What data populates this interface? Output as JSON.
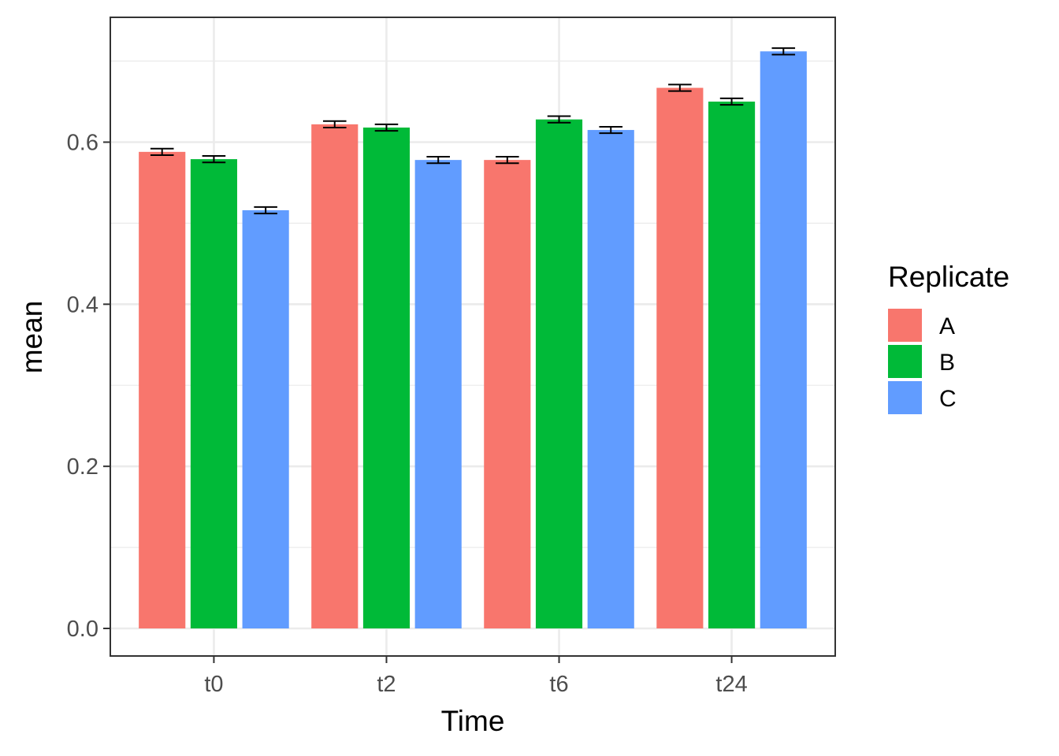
{
  "chart_data": {
    "type": "bar",
    "xlabel": "Time",
    "ylabel": "mean",
    "categories": [
      "t0",
      "t2",
      "t6",
      "t24"
    ],
    "ylim": [
      -0.034,
      0.754
    ],
    "yticks": [
      0.0,
      0.2,
      0.4,
      0.6
    ],
    "ytick_labels": [
      "0.0",
      "0.2",
      "0.4",
      "0.6"
    ],
    "grid": true,
    "legend": {
      "title": "Replicate",
      "position": "right"
    },
    "series": [
      {
        "name": "A",
        "color": "#F8766D",
        "values": [
          0.588,
          0.622,
          0.578,
          0.667
        ],
        "errors": [
          0.004,
          0.004,
          0.004,
          0.004
        ]
      },
      {
        "name": "B",
        "color": "#00BA38",
        "values": [
          0.579,
          0.618,
          0.628,
          0.65
        ],
        "errors": [
          0.004,
          0.004,
          0.004,
          0.004
        ]
      },
      {
        "name": "C",
        "color": "#619CFF",
        "values": [
          0.516,
          0.578,
          0.615,
          0.712
        ],
        "errors": [
          0.004,
          0.004,
          0.004,
          0.004
        ]
      }
    ]
  }
}
